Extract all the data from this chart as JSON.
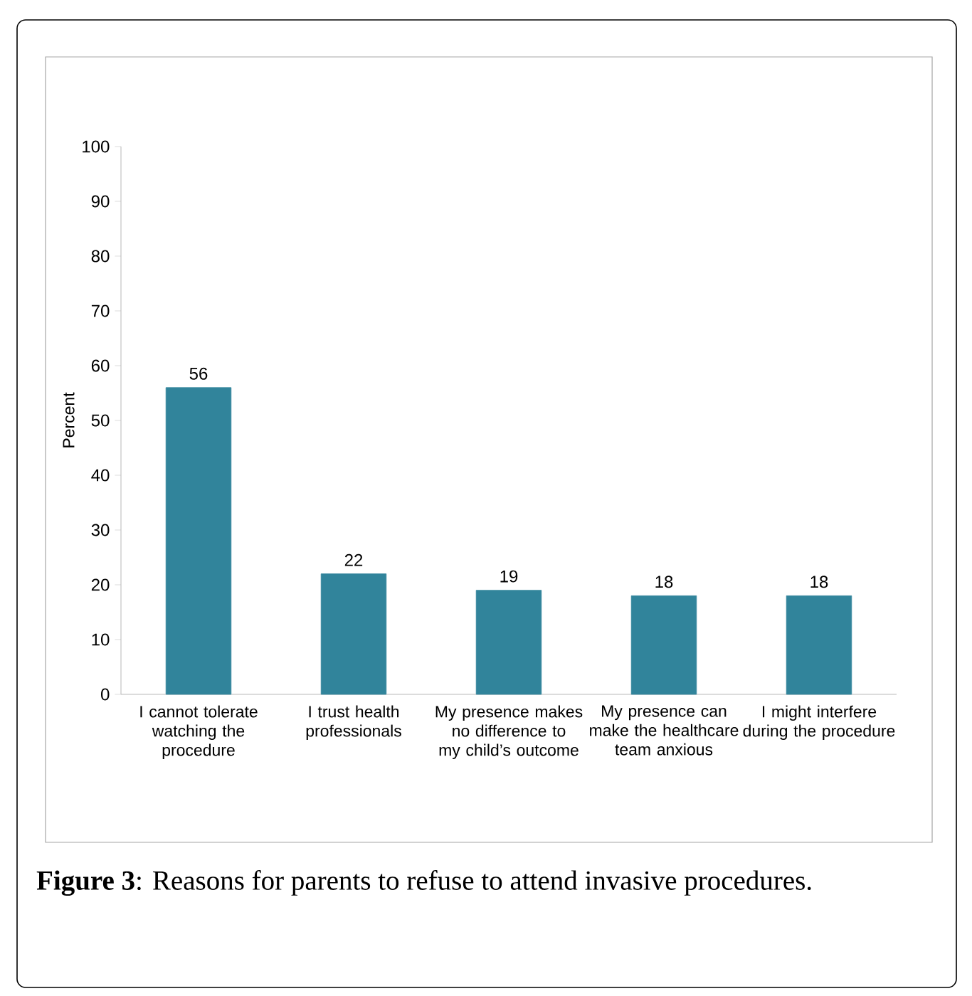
{
  "chart_data": {
    "type": "bar",
    "categories": [
      "I cannot tolerate watching the procedure",
      "I trust health professionals",
      "My presence makes no difference to my child’s outcome",
      "My presence can make the healthcare team anxious",
      "I might interfere during the procedure"
    ],
    "values": [
      56,
      22,
      19,
      18,
      18
    ],
    "color": "#31849b",
    "ylabel": "Percent",
    "ylim": [
      0,
      100
    ],
    "yticks": [
      0,
      10,
      20,
      30,
      40,
      50,
      60,
      70,
      80,
      90,
      100
    ],
    "data_labels": true,
    "annotations": [
      "**Figure 3**: Reasons for parents to refuse to attend invasive procedures."
    ]
  }
}
